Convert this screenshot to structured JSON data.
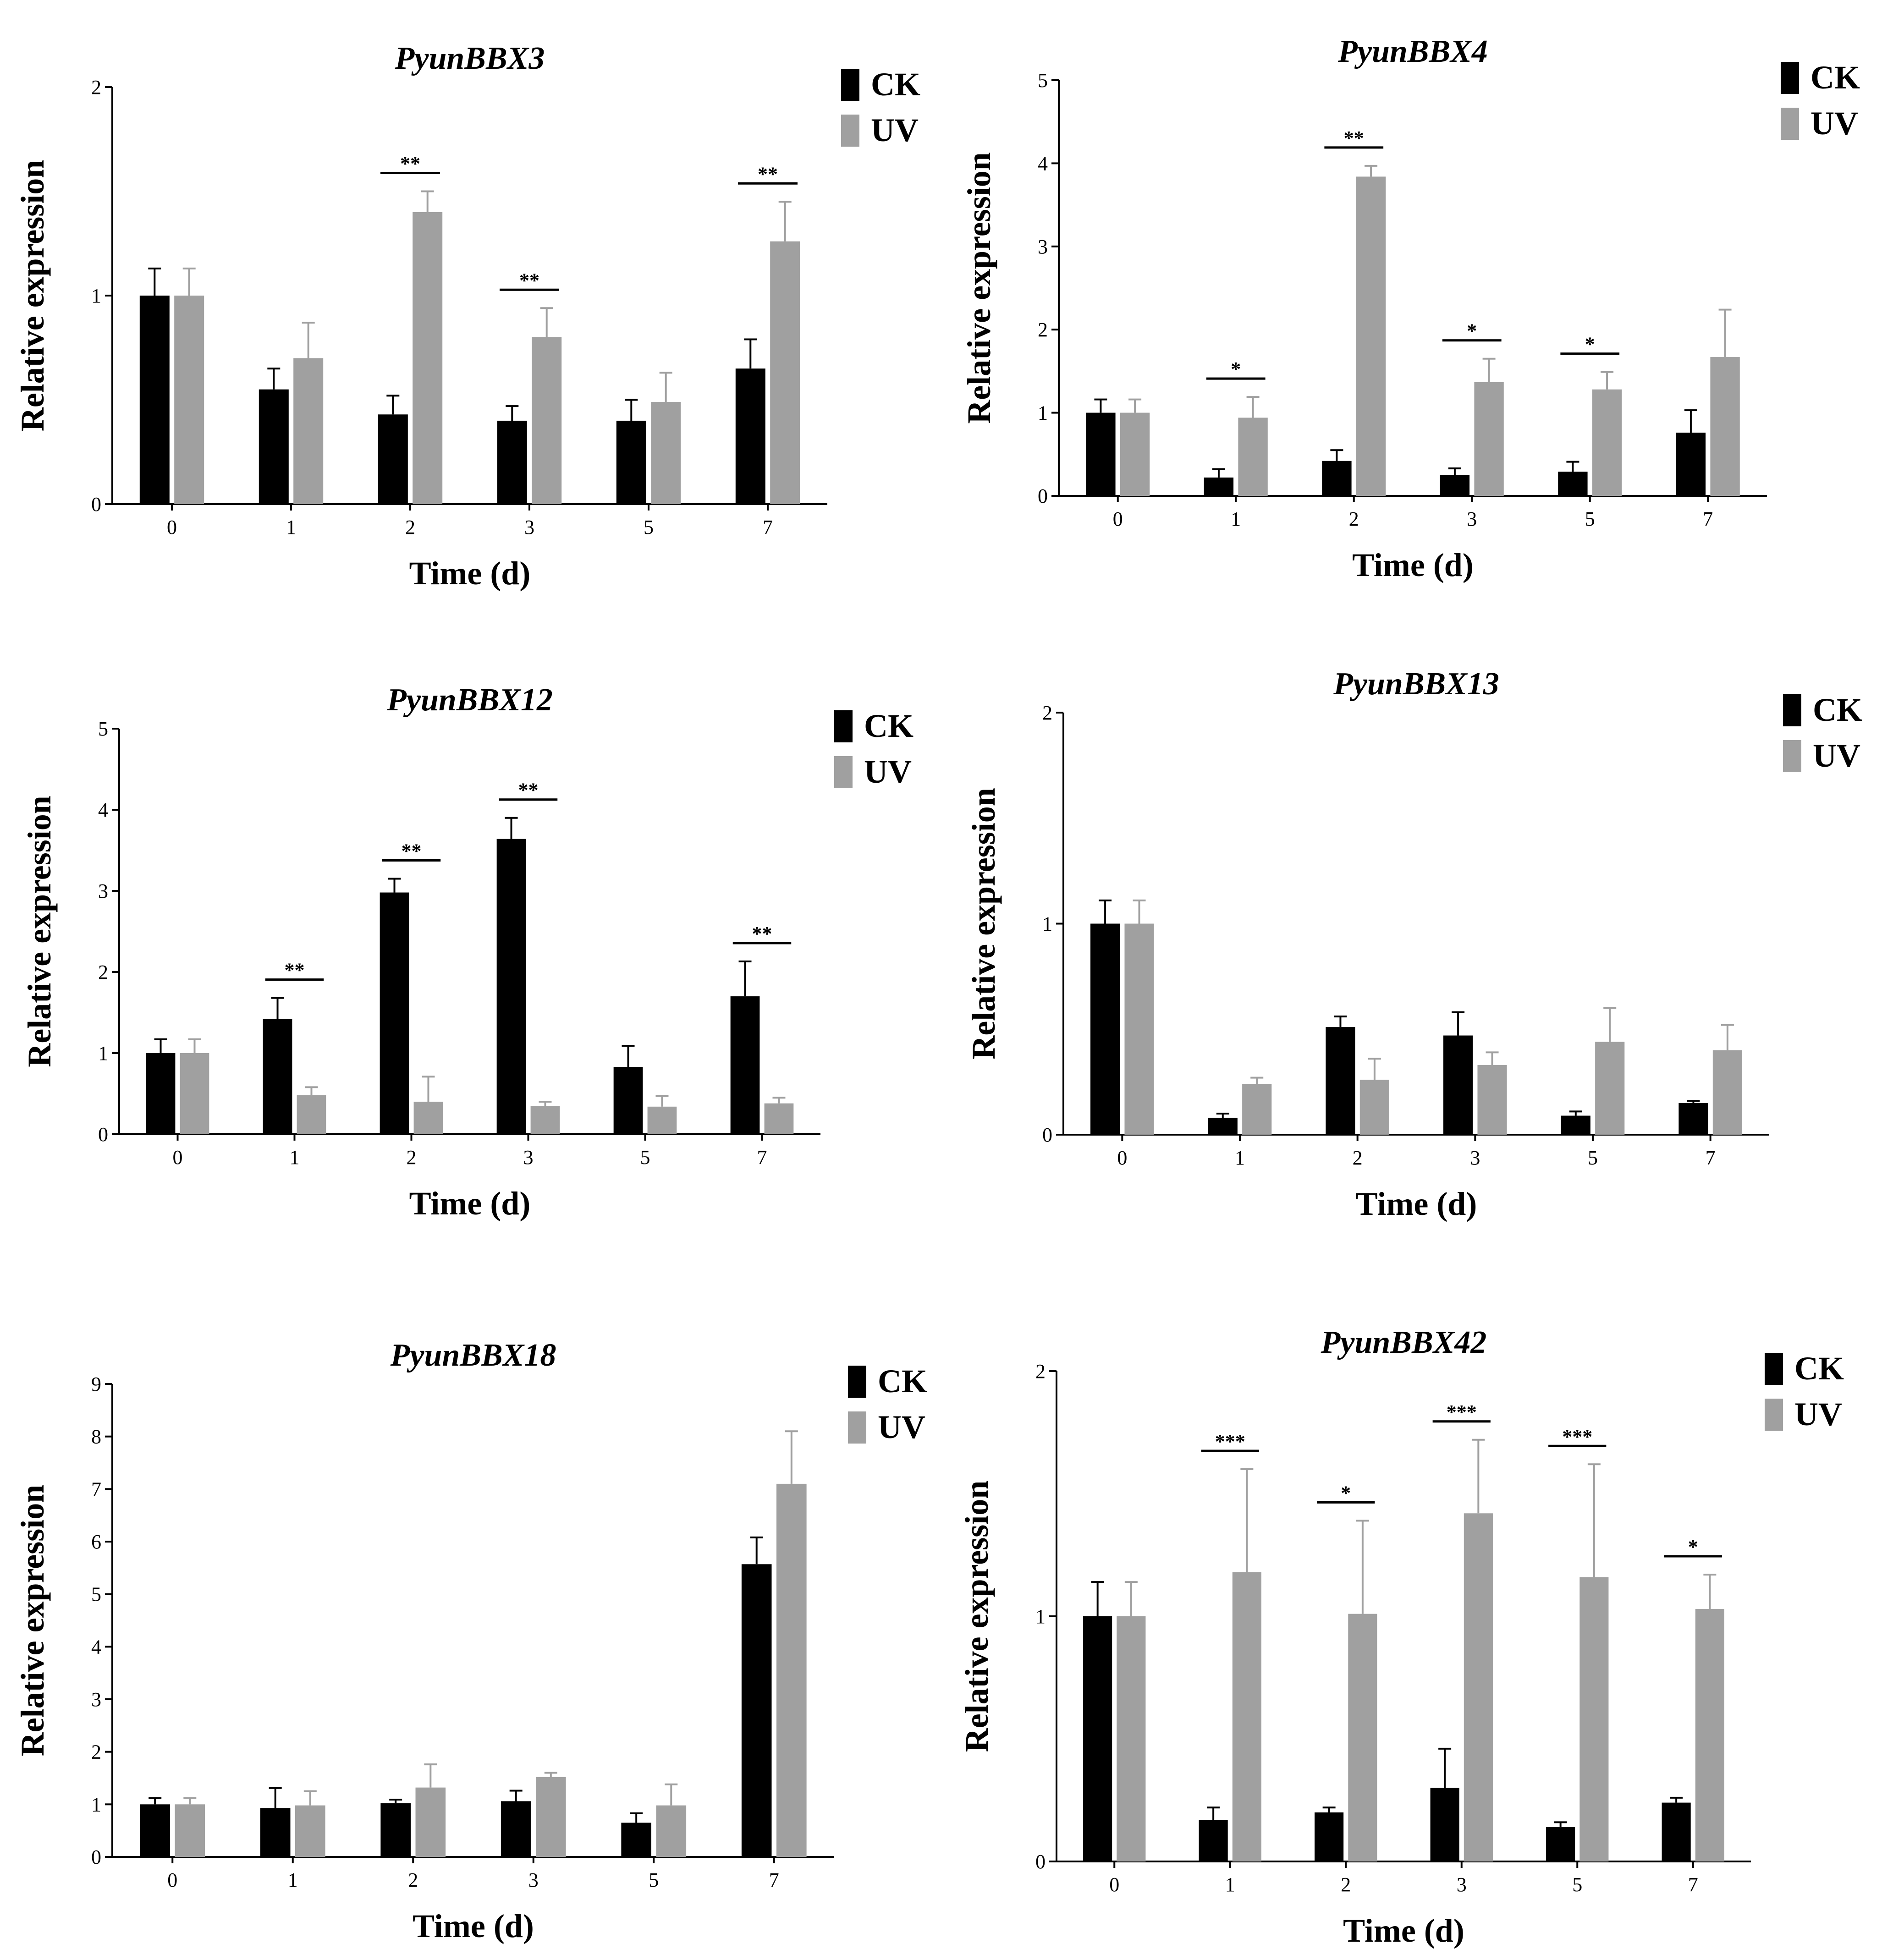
{
  "chart_data": [
    {
      "type": "bar",
      "title": "PyunBBX3",
      "xlabel": "Time (d)",
      "ylabel": "Relative expression",
      "categories": [
        "0",
        "1",
        "2",
        "3",
        "5",
        "7"
      ],
      "ylim": [
        0,
        2
      ],
      "yticks": [
        "0",
        "1",
        "2"
      ],
      "legend_position": "top-right",
      "series": [
        {
          "name": "CK",
          "color": "#000000",
          "values": [
            1.0,
            0.55,
            0.43,
            0.4,
            0.4,
            0.65
          ],
          "errors": [
            0.13,
            0.1,
            0.09,
            0.07,
            0.1,
            0.14
          ]
        },
        {
          "name": "UV",
          "color": "#a0a0a0",
          "values": [
            1.0,
            0.7,
            1.4,
            0.8,
            0.49,
            1.26
          ],
          "errors": [
            0.13,
            0.17,
            0.1,
            0.14,
            0.14,
            0.19
          ]
        }
      ],
      "significance": [
        {
          "category": "2",
          "label": "**"
        },
        {
          "category": "3",
          "label": "**"
        },
        {
          "category": "7",
          "label": "**"
        }
      ]
    },
    {
      "type": "bar",
      "title": "PyunBBX4",
      "xlabel": "Time (d)",
      "ylabel": "Relative expression",
      "categories": [
        "0",
        "1",
        "2",
        "3",
        "5",
        "7"
      ],
      "ylim": [
        0,
        5
      ],
      "yticks": [
        "0",
        "1",
        "2",
        "3",
        "4",
        "5"
      ],
      "legend_position": "top-right",
      "series": [
        {
          "name": "CK",
          "color": "#000000",
          "values": [
            1.0,
            0.22,
            0.42,
            0.25,
            0.29,
            0.76
          ],
          "errors": [
            0.16,
            0.1,
            0.13,
            0.08,
            0.12,
            0.27
          ]
        },
        {
          "name": "UV",
          "color": "#a0a0a0",
          "values": [
            1.0,
            0.94,
            3.84,
            1.37,
            1.28,
            1.67
          ],
          "errors": [
            0.16,
            0.25,
            0.13,
            0.28,
            0.21,
            0.57
          ]
        }
      ],
      "significance": [
        {
          "category": "1",
          "label": "*"
        },
        {
          "category": "2",
          "label": "**"
        },
        {
          "category": "3",
          "label": "*"
        },
        {
          "category": "5",
          "label": "*"
        }
      ]
    },
    {
      "type": "bar",
      "title": "PyunBBX12",
      "xlabel": "Time (d)",
      "ylabel": "Relative expression",
      "categories": [
        "0",
        "1",
        "2",
        "3",
        "5",
        "7"
      ],
      "ylim": [
        0,
        5
      ],
      "yticks": [
        "0",
        "1",
        "2",
        "3",
        "4",
        "5"
      ],
      "legend_position": "top-right",
      "series": [
        {
          "name": "CK",
          "color": "#000000",
          "values": [
            1.0,
            1.42,
            2.98,
            3.64,
            0.83,
            1.7
          ],
          "errors": [
            0.17,
            0.26,
            0.17,
            0.26,
            0.26,
            0.43
          ]
        },
        {
          "name": "UV",
          "color": "#a0a0a0",
          "values": [
            1.0,
            0.48,
            0.4,
            0.35,
            0.34,
            0.38
          ],
          "errors": [
            0.17,
            0.1,
            0.31,
            0.05,
            0.13,
            0.07
          ]
        }
      ],
      "significance": [
        {
          "category": "1",
          "label": "**"
        },
        {
          "category": "2",
          "label": "**"
        },
        {
          "category": "3",
          "label": "**"
        },
        {
          "category": "7",
          "label": "**"
        }
      ]
    },
    {
      "type": "bar",
      "title": "PyunBBX13",
      "xlabel": "Time (d)",
      "ylabel": "Relative expression",
      "categories": [
        "0",
        "1",
        "2",
        "3",
        "5",
        "7"
      ],
      "ylim": [
        0,
        2
      ],
      "yticks": [
        "0",
        "1",
        "2"
      ],
      "legend_position": "top-right",
      "series": [
        {
          "name": "CK",
          "color": "#000000",
          "values": [
            1.0,
            0.08,
            0.51,
            0.47,
            0.09,
            0.15
          ],
          "errors": [
            0.11,
            0.02,
            0.05,
            0.11,
            0.02,
            0.01
          ]
        },
        {
          "name": "UV",
          "color": "#a0a0a0",
          "values": [
            1.0,
            0.24,
            0.26,
            0.33,
            0.44,
            0.4
          ],
          "errors": [
            0.11,
            0.03,
            0.1,
            0.06,
            0.16,
            0.12
          ]
        }
      ],
      "significance": []
    },
    {
      "type": "bar",
      "title": "PyunBBX18",
      "xlabel": "Time (d)",
      "ylabel": "Relative expression",
      "categories": [
        "0",
        "1",
        "2",
        "3",
        "5",
        "7"
      ],
      "ylim": [
        0,
        9
      ],
      "yticks": [
        "0",
        "1",
        "2",
        "3",
        "4",
        "5",
        "6",
        "7",
        "8",
        "9"
      ],
      "legend_position": "top-right",
      "series": [
        {
          "name": "CK",
          "color": "#000000",
          "values": [
            1.0,
            0.93,
            1.02,
            1.06,
            0.65,
            5.57
          ],
          "errors": [
            0.12,
            0.38,
            0.07,
            0.2,
            0.18,
            0.51
          ]
        },
        {
          "name": "UV",
          "color": "#a0a0a0",
          "values": [
            1.0,
            0.98,
            1.32,
            1.52,
            0.98,
            7.1
          ],
          "errors": [
            0.12,
            0.27,
            0.44,
            0.08,
            0.4,
            1.0
          ]
        }
      ],
      "significance": []
    },
    {
      "type": "bar",
      "title": "PyunBBX42",
      "xlabel": "Time (d)",
      "ylabel": "Relative expression",
      "categories": [
        "0",
        "1",
        "2",
        "3",
        "5",
        "7"
      ],
      "ylim": [
        0,
        2
      ],
      "yticks": [
        "0",
        "1",
        "2"
      ],
      "legend_position": "top-right",
      "series": [
        {
          "name": "CK",
          "color": "#000000",
          "values": [
            1.0,
            0.17,
            0.2,
            0.3,
            0.14,
            0.24
          ],
          "errors": [
            0.14,
            0.05,
            0.02,
            0.16,
            0.02,
            0.02
          ]
        },
        {
          "name": "UV",
          "color": "#a0a0a0",
          "values": [
            1.0,
            1.18,
            1.01,
            1.42,
            1.16,
            1.03
          ],
          "errors": [
            0.14,
            0.42,
            0.38,
            0.3,
            0.46,
            0.14
          ]
        }
      ],
      "significance": [
        {
          "category": "1",
          "label": "***"
        },
        {
          "category": "2",
          "label": "*"
        },
        {
          "category": "3",
          "label": "***"
        },
        {
          "category": "5",
          "label": "***"
        },
        {
          "category": "7",
          "label": "*"
        }
      ]
    }
  ]
}
